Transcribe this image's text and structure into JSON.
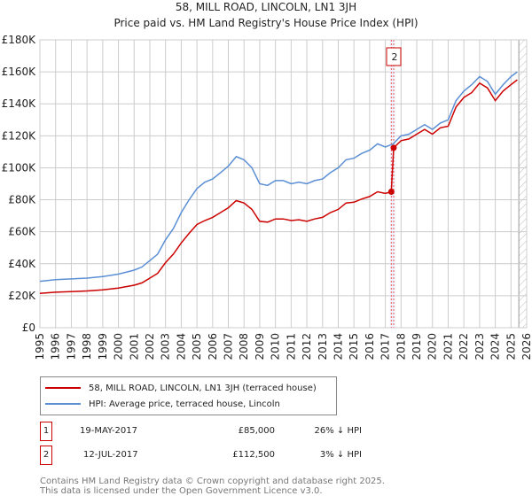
{
  "chart_data": {
    "type": "line",
    "title": "58, MILL ROAD, LINCOLN, LN1 3JH",
    "subtitle": "Price paid vs. HM Land Registry's House Price Index (HPI)",
    "xlim": [
      1995,
      2026
    ],
    "ylim": [
      0,
      180000
    ],
    "y_ticks": [
      {
        "v": 0,
        "label": "£0"
      },
      {
        "v": 20000,
        "label": "£20K"
      },
      {
        "v": 40000,
        "label": "£40K"
      },
      {
        "v": 60000,
        "label": "£60K"
      },
      {
        "v": 80000,
        "label": "£80K"
      },
      {
        "v": 100000,
        "label": "£100K"
      },
      {
        "v": 120000,
        "label": "£120K"
      },
      {
        "v": 140000,
        "label": "£140K"
      },
      {
        "v": 160000,
        "label": "£160K"
      },
      {
        "v": 180000,
        "label": "£180K"
      }
    ],
    "x_ticks": [
      "1995",
      "1996",
      "1997",
      "1998",
      "1999",
      "2000",
      "2001",
      "2002",
      "2003",
      "2004",
      "2005",
      "2006",
      "2007",
      "2008",
      "2009",
      "2010",
      "2011",
      "2012",
      "2013",
      "2014",
      "2015",
      "2016",
      "2017",
      "2018",
      "2019",
      "2020",
      "2021",
      "2022",
      "2023",
      "2024",
      "2025",
      "2026"
    ],
    "grid": true,
    "forecast_hatch_from": 2025.5,
    "series": [
      {
        "name": "58, MILL ROAD, LINCOLN, LN1 3JH (terraced house)",
        "color": "#cc0000",
        "x": [
          1995,
          1996,
          1997,
          1998,
          1999,
          2000,
          2001,
          2001.5,
          2002,
          2002.5,
          2003,
          2003.5,
          2004,
          2004.5,
          2005,
          2005.5,
          2006,
          2006.5,
          2007,
          2007.5,
          2008,
          2008.5,
          2009,
          2009.5,
          2010,
          2010.5,
          2011,
          2011.5,
          2012,
          2012.5,
          2013,
          2013.5,
          2014,
          2014.5,
          2015,
          2015.5,
          2016,
          2016.5,
          2017,
          2017.38,
          2017.53,
          2018,
          2018.5,
          2019,
          2019.5,
          2020,
          2020.5,
          2021,
          2021.5,
          2022,
          2022.5,
          2023,
          2023.5,
          2024,
          2024.5,
          2025,
          2025.4
        ],
        "y": [
          21500,
          22200,
          22600,
          23000,
          23700,
          24800,
          26600,
          28000,
          31000,
          34000,
          40700,
          46000,
          53000,
          59000,
          64500,
          67000,
          69000,
          72000,
          75000,
          79500,
          78000,
          74000,
          66500,
          66000,
          68000,
          68000,
          67000,
          67500,
          66500,
          68000,
          69000,
          72000,
          74000,
          78000,
          78500,
          80500,
          82000,
          85000,
          84000,
          85000,
          112500,
          117000,
          118000,
          121000,
          124000,
          121000,
          125000,
          126000,
          138000,
          144000,
          147000,
          153000,
          150000,
          142000,
          148000,
          152000,
          155000
        ]
      },
      {
        "name": "HPI: Average price, terraced house, Lincoln",
        "color": "#5b8fd4",
        "x": [
          1995,
          1996,
          1997,
          1998,
          1999,
          2000,
          2001,
          2001.5,
          2002,
          2002.5,
          2003,
          2003.5,
          2004,
          2004.5,
          2005,
          2005.5,
          2006,
          2006.5,
          2007,
          2007.5,
          2008,
          2008.5,
          2009,
          2009.5,
          2010,
          2010.5,
          2011,
          2011.5,
          2012,
          2012.5,
          2013,
          2013.5,
          2014,
          2014.5,
          2015,
          2015.5,
          2016,
          2016.5,
          2017,
          2017.5,
          2018,
          2018.5,
          2019,
          2019.5,
          2020,
          2020.5,
          2021,
          2021.5,
          2022,
          2022.5,
          2023,
          2023.5,
          2024,
          2024.5,
          2025,
          2025.4
        ],
        "y": [
          29000,
          30000,
          30500,
          31000,
          32000,
          33500,
          36000,
          38000,
          42000,
          46000,
          55000,
          62000,
          72000,
          80000,
          87000,
          91000,
          93000,
          97000,
          101000,
          107000,
          105000,
          100000,
          90000,
          89000,
          92000,
          92000,
          90000,
          91000,
          90000,
          92000,
          93000,
          97000,
          100000,
          105000,
          106000,
          109000,
          111000,
          115000,
          113000,
          115000,
          120000,
          121000,
          124000,
          127000,
          124000,
          128000,
          130000,
          142000,
          148000,
          152000,
          157000,
          154000,
          146000,
          152000,
          157000,
          160000
        ]
      }
    ],
    "sales": [
      {
        "id": "1",
        "x": 2017.38,
        "y": 85000,
        "date": "19-MAY-2017",
        "price": "£85,000",
        "hpi": "26% ↓ HPI"
      },
      {
        "id": "2",
        "x": 2017.53,
        "y": 112500,
        "date": "12-JUL-2017",
        "price": "£112,500",
        "hpi": "3% ↓ HPI"
      }
    ]
  },
  "footer": {
    "line1": "Contains HM Land Registry data © Crown copyright and database right 2025.",
    "line2": "This data is licensed under the Open Government Licence v3.0."
  }
}
